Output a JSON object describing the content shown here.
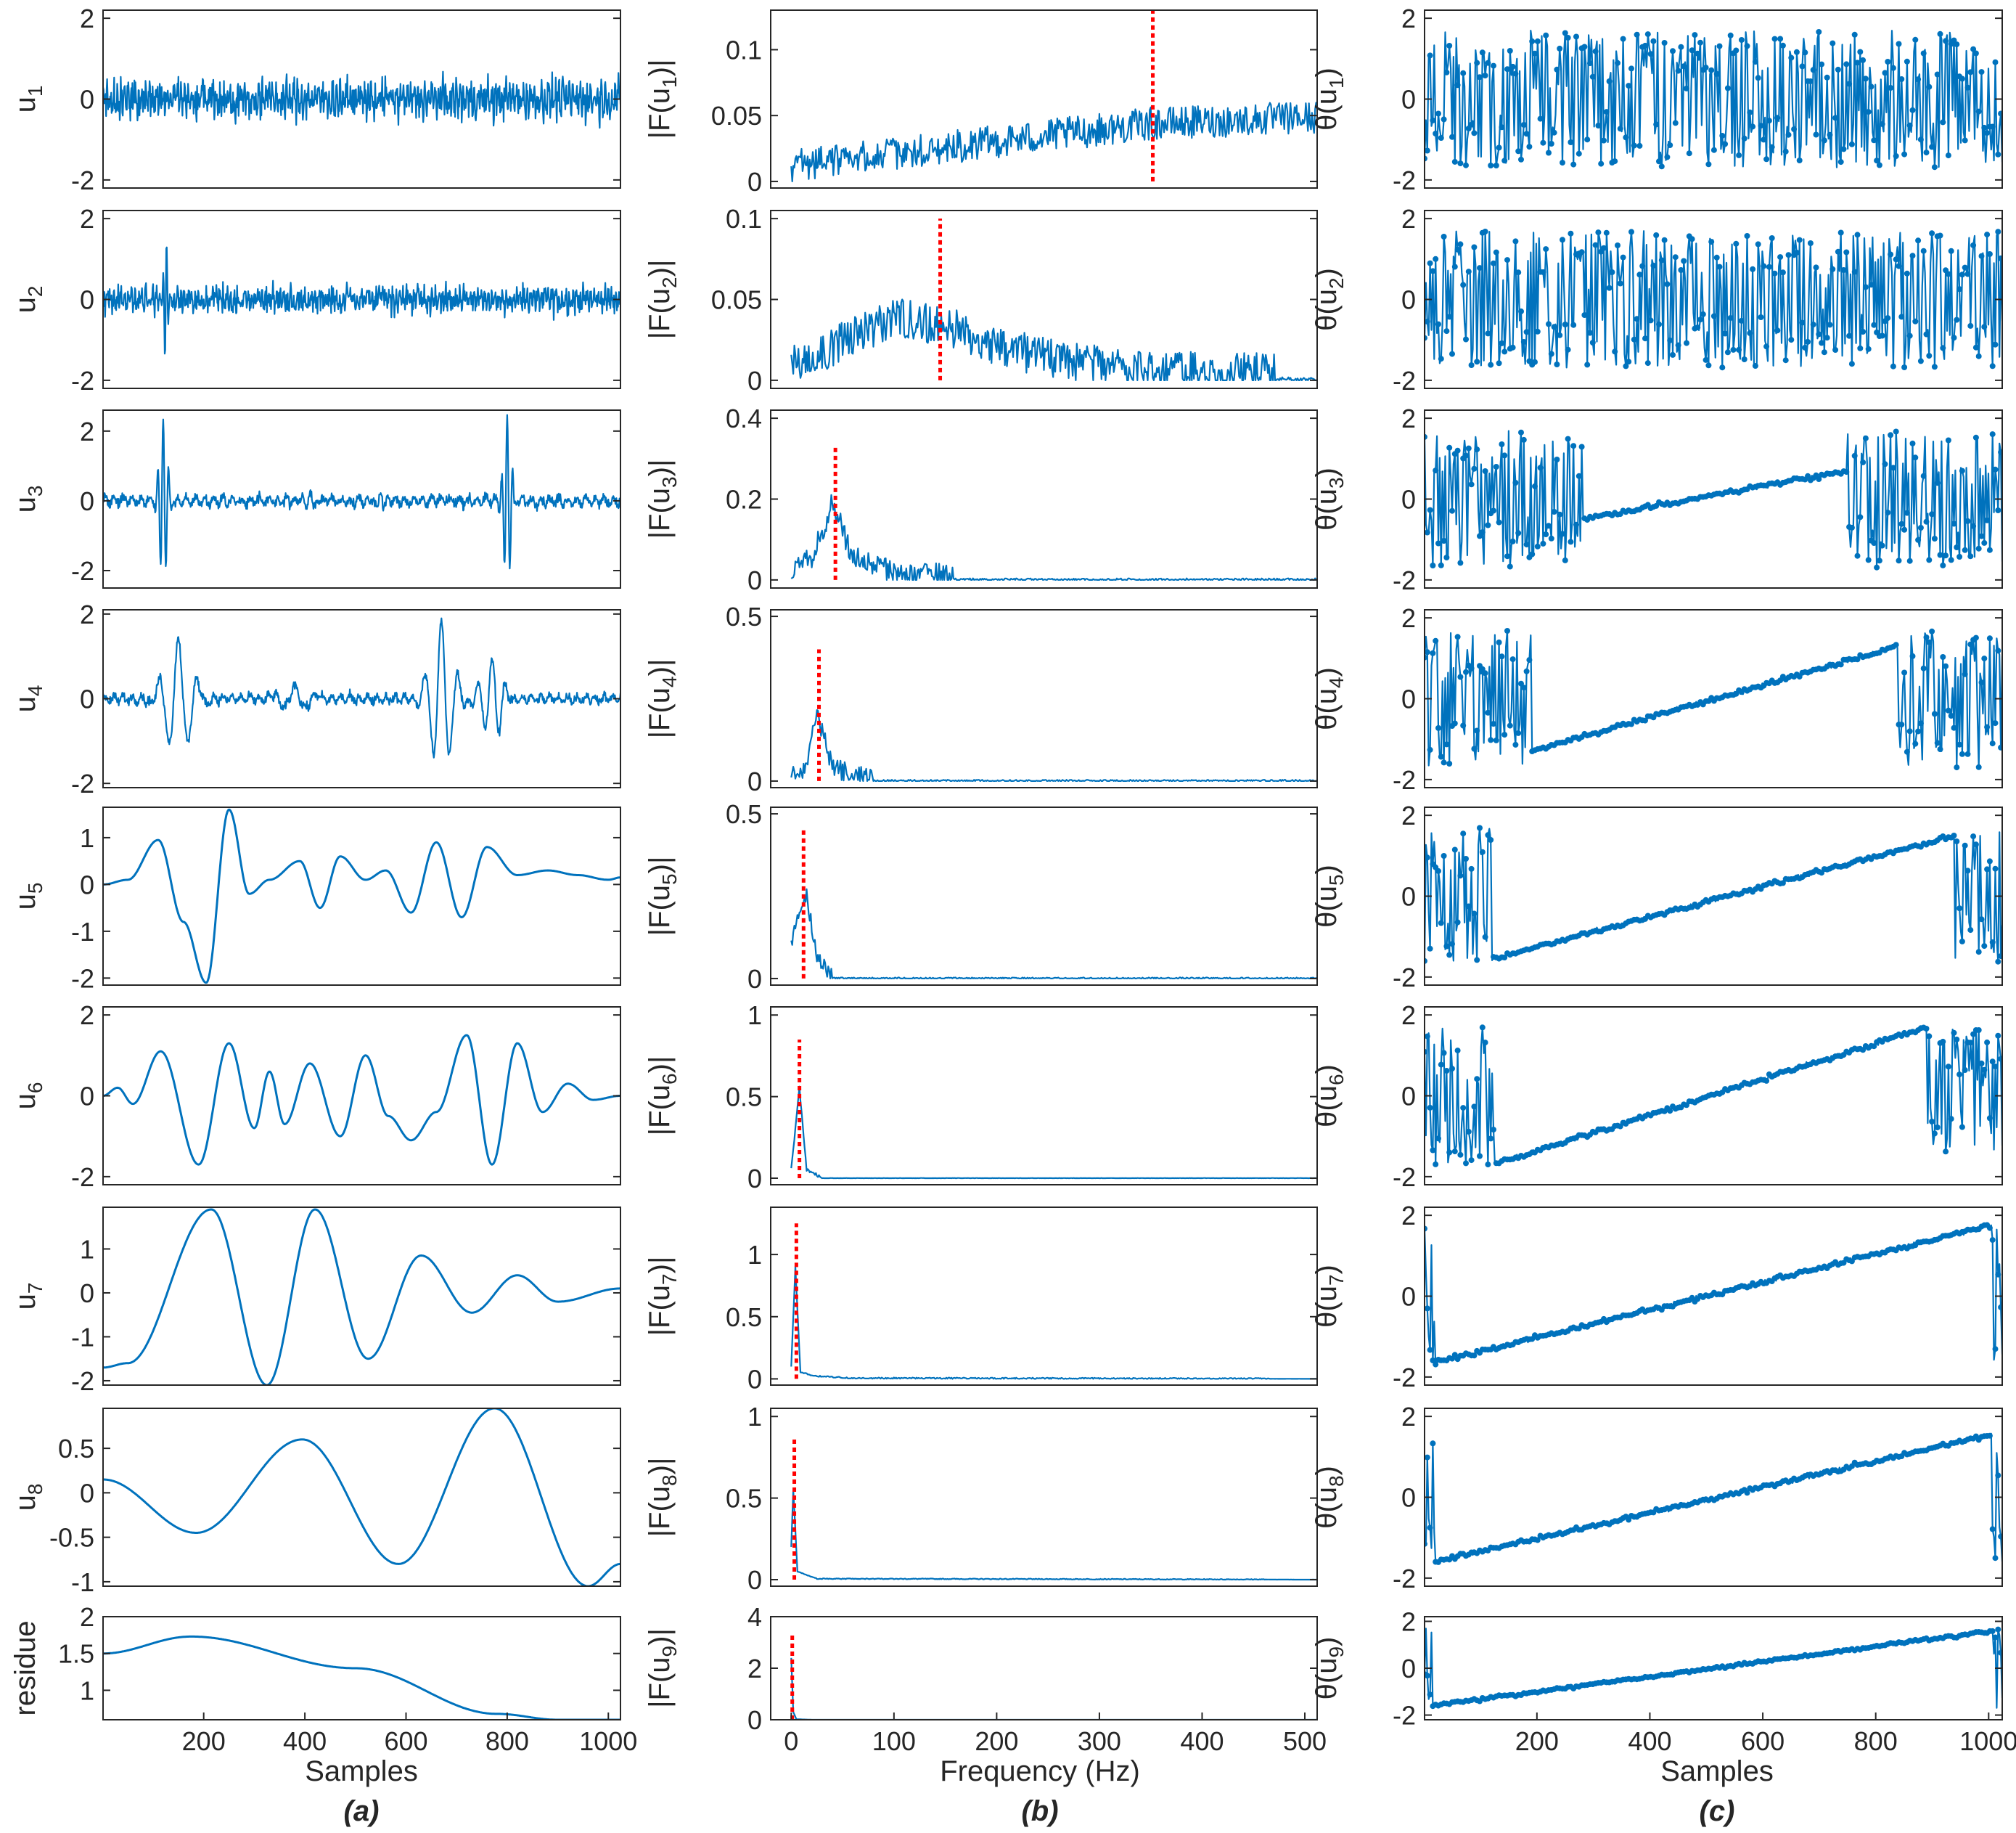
{
  "colors": {
    "signal": "#0072BD",
    "center_frequency": "#FF0000",
    "axes": "#262626"
  },
  "columns": {
    "a": {
      "panel_label": "(a)",
      "xlabel": "Samples"
    },
    "b": {
      "panel_label": "(b)",
      "xlabel": "Frequency (Hz)"
    },
    "c": {
      "panel_label": "(c)",
      "xlabel": "Samples"
    }
  },
  "chart_data": [
    {
      "type": "line",
      "column": "a",
      "row": 1,
      "ylabel": "u_1",
      "xlim": [
        1,
        1024
      ],
      "ylim": [
        -2.2,
        2.2
      ],
      "yticks": [
        -2,
        0,
        2
      ],
      "ytick_labels": [
        "-2",
        "0",
        "2"
      ],
      "pattern": "noise",
      "amplitude": 0.5
    },
    {
      "type": "line",
      "column": "a",
      "row": 2,
      "ylabel": "u_2",
      "xlim": [
        1,
        1024
      ],
      "ylim": [
        -2.2,
        2.2
      ],
      "yticks": [
        -2,
        0,
        2
      ],
      "ytick_labels": [
        "-2",
        "0",
        "2"
      ],
      "pattern": "noise",
      "amplitude": 0.35,
      "burst_at": 125,
      "burst_amplitude": 1.6
    },
    {
      "type": "line",
      "column": "a",
      "row": 3,
      "ylabel": "u_3",
      "xlim": [
        1,
        1024
      ],
      "ylim": [
        -2.5,
        2.6
      ],
      "yticks": [
        -2,
        0,
        2
      ],
      "ytick_labels": [
        "-2",
        "0",
        "2"
      ],
      "pattern": "bursts",
      "amplitude": 0.2,
      "bursts": [
        [
          120,
          2.5,
          10
        ],
        [
          800,
          2.5,
          10
        ],
        [
          410,
          0.35,
          15
        ],
        [
          550,
          0.3,
          15
        ]
      ]
    },
    {
      "type": "line",
      "column": "a",
      "row": 4,
      "ylabel": "u_4",
      "xlim": [
        1,
        1024
      ],
      "ylim": [
        -2.1,
        2.1
      ],
      "yticks": [
        -2,
        0,
        2
      ],
      "ytick_labels": [
        "-2",
        "0",
        "2"
      ],
      "pattern": "bursts",
      "amplitude": 0.15,
      "bursts": [
        [
          150,
          1.4,
          35
        ],
        [
          670,
          1.8,
          30
        ],
        [
          770,
          1.0,
          25
        ],
        [
          380,
          0.3,
          40
        ]
      ]
    },
    {
      "type": "line",
      "column": "a",
      "row": 5,
      "ylabel": "u_5",
      "xlim": [
        1,
        1024
      ],
      "ylim": [
        -2.15,
        1.65
      ],
      "yticks": [
        -2,
        -1,
        0,
        1
      ],
      "ytick_labels": [
        "-2",
        "-1",
        "0",
        "1"
      ],
      "pattern": "oscillation",
      "x": [
        1,
        50,
        110,
        160,
        205,
        250,
        290,
        330,
        390,
        430,
        470,
        520,
        560,
        610,
        660,
        710,
        760,
        820,
        880,
        940,
        1000,
        1024
      ],
      "y": [
        0,
        0.1,
        0.95,
        -0.8,
        -2.1,
        1.6,
        -0.2,
        0.1,
        0.5,
        -0.5,
        0.6,
        0.1,
        0.3,
        -0.6,
        0.9,
        -0.7,
        0.8,
        0.2,
        0.3,
        0.2,
        0.1,
        0.15
      ]
    },
    {
      "type": "line",
      "column": "a",
      "row": 6,
      "ylabel": "u_6",
      "xlim": [
        1,
        1024
      ],
      "ylim": [
        -2.2,
        2.2
      ],
      "yticks": [
        -2,
        0,
        2
      ],
      "ytick_labels": [
        "-2",
        "0",
        "2"
      ],
      "pattern": "oscillation",
      "x": [
        1,
        30,
        60,
        115,
        190,
        250,
        300,
        330,
        360,
        410,
        470,
        520,
        565,
        610,
        660,
        720,
        770,
        820,
        870,
        920,
        970,
        1024
      ],
      "y": [
        0,
        0.2,
        -0.2,
        1.1,
        -1.7,
        1.3,
        -0.8,
        0.6,
        -0.7,
        0.8,
        -1.0,
        1.0,
        -0.5,
        -1.1,
        -0.4,
        1.5,
        -1.7,
        1.3,
        -0.4,
        0.3,
        -0.1,
        0
      ]
    },
    {
      "type": "line",
      "column": "a",
      "row": 7,
      "ylabel": "u_7",
      "xlim": [
        1,
        1024
      ],
      "ylim": [
        -2.1,
        1.95
      ],
      "yticks": [
        -2,
        -1,
        0,
        1
      ],
      "ytick_labels": [
        "-2",
        "-1",
        "0",
        "1"
      ],
      "pattern": "oscillation",
      "x": [
        1,
        50,
        215,
        325,
        420,
        525,
        630,
        730,
        820,
        900,
        1024
      ],
      "y": [
        -1.7,
        -1.6,
        1.9,
        -2.1,
        1.9,
        -1.5,
        0.85,
        -0.45,
        0.4,
        -0.2,
        0.1
      ]
    },
    {
      "type": "line",
      "column": "a",
      "row": 8,
      "ylabel": "u_8",
      "xlim": [
        1,
        1024
      ],
      "ylim": [
        -1.05,
        0.95
      ],
      "yticks": [
        -1,
        -0.5,
        0,
        0.5
      ],
      "ytick_labels": [
        "-1",
        "-0.5",
        "0",
        "0.5"
      ],
      "pattern": "oscillation",
      "x": [
        1,
        185,
        395,
        585,
        775,
        960,
        1024
      ],
      "y": [
        0.15,
        -0.45,
        0.6,
        -0.8,
        0.95,
        -1.05,
        -0.8
      ]
    },
    {
      "type": "line",
      "column": "a",
      "row": 9,
      "ylabel": "residue",
      "xlim": [
        1,
        1024
      ],
      "ylim": [
        0.6,
        2.0
      ],
      "yticks": [
        1,
        1.5,
        2
      ],
      "ytick_labels": [
        "1",
        "1.5",
        "2"
      ],
      "xticks": [
        200,
        400,
        600,
        800,
        1000
      ],
      "xtick_labels": [
        "200",
        "400",
        "600",
        "800",
        "1000"
      ],
      "pattern": "oscillation",
      "x": [
        1,
        175,
        500,
        780,
        900,
        1024
      ],
      "y": [
        1.5,
        1.73,
        1.3,
        0.68,
        0.6,
        0.6
      ]
    },
    {
      "type": "line",
      "column": "b",
      "row": 1,
      "ylabel": "|F(u_1)|",
      "xlim": [
        -20,
        512
      ],
      "ylim": [
        -0.005,
        0.13
      ],
      "yticks": [
        0,
        0.05,
        0.1
      ],
      "ytick_labels": [
        "0",
        "0.05",
        "0.1"
      ],
      "center_frequency": 352,
      "red_line_top": 0.13,
      "envelope": [
        [
          0,
          0.008
        ],
        [
          150,
          0.022
        ],
        [
          350,
          0.04
        ],
        [
          512,
          0.045
        ]
      ],
      "noise": 0.025
    },
    {
      "type": "line",
      "column": "b",
      "row": 2,
      "ylabel": "|F(u_2)|",
      "xlim": [
        -20,
        512
      ],
      "ylim": [
        -0.005,
        0.105
      ],
      "yticks": [
        0,
        0.05,
        0.1
      ],
      "ytick_labels": [
        "0",
        "0.05",
        "0.1"
      ],
      "center_frequency": 145,
      "red_line_top": 0.1,
      "envelope": [
        [
          0,
          0.005
        ],
        [
          50,
          0.02
        ],
        [
          100,
          0.035
        ],
        [
          150,
          0.03
        ],
        [
          200,
          0.018
        ],
        [
          260,
          0.008
        ],
        [
          350,
          0.002
        ],
        [
          512,
          0.0
        ]
      ],
      "noise": 0.025
    },
    {
      "type": "line",
      "column": "b",
      "row": 3,
      "ylabel": "|F(u_3)|",
      "xlim": [
        -20,
        512
      ],
      "ylim": [
        -0.02,
        0.42
      ],
      "yticks": [
        0,
        0.2,
        0.4
      ],
      "ytick_labels": [
        "0",
        "0.2",
        "0.4"
      ],
      "center_frequency": 43,
      "red_line_top": 0.33,
      "envelope": [
        [
          0,
          0.02
        ],
        [
          20,
          0.05
        ],
        [
          40,
          0.18
        ],
        [
          60,
          0.05
        ],
        [
          100,
          0.01
        ],
        [
          160,
          0.0
        ],
        [
          512,
          0.0
        ]
      ],
      "noise": 0.06
    },
    {
      "type": "line",
      "column": "b",
      "row": 4,
      "ylabel": "|F(u_4)|",
      "xlim": [
        -20,
        512
      ],
      "ylim": [
        -0.02,
        0.52
      ],
      "yticks": [
        0,
        0.5
      ],
      "ytick_labels": [
        "0",
        "0.5"
      ],
      "center_frequency": 27,
      "red_line_top": 0.4,
      "envelope": [
        [
          0,
          0.01
        ],
        [
          15,
          0.03
        ],
        [
          25,
          0.2
        ],
        [
          40,
          0.03
        ],
        [
          80,
          0.0
        ],
        [
          512,
          0.0
        ]
      ],
      "noise": 0.06
    },
    {
      "type": "line",
      "column": "b",
      "row": 5,
      "ylabel": "|F(u_5)|",
      "xlim": [
        -20,
        512
      ],
      "ylim": [
        -0.02,
        0.52
      ],
      "yticks": [
        0,
        0.5
      ],
      "ytick_labels": [
        "0",
        "0.5"
      ],
      "center_frequency": 12,
      "red_line_top": 0.45,
      "envelope": [
        [
          0,
          0.1
        ],
        [
          8,
          0.2
        ],
        [
          15,
          0.25
        ],
        [
          25,
          0.05
        ],
        [
          40,
          0.0
        ],
        [
          512,
          0.0
        ]
      ],
      "noise": 0.05
    },
    {
      "type": "line",
      "column": "b",
      "row": 6,
      "ylabel": "|F(u_6)|",
      "xlim": [
        -20,
        512
      ],
      "ylim": [
        -0.04,
        1.05
      ],
      "yticks": [
        0,
        0.5,
        1
      ],
      "ytick_labels": [
        "0",
        "0.5",
        "1"
      ],
      "center_frequency": 8,
      "red_line_top": 0.85,
      "envelope": [
        [
          0,
          0.05
        ],
        [
          8,
          0.55
        ],
        [
          15,
          0.05
        ],
        [
          30,
          0.0
        ],
        [
          512,
          0.0
        ]
      ],
      "noise": 0.02
    },
    {
      "type": "line",
      "column": "b",
      "row": 7,
      "ylabel": "|F(u_7)|",
      "xlim": [
        -20,
        512
      ],
      "ylim": [
        -0.05,
        1.38
      ],
      "yticks": [
        0,
        0.5,
        1
      ],
      "ytick_labels": [
        "0",
        "0.5",
        "1"
      ],
      "center_frequency": 5,
      "red_line_top": 1.25,
      "envelope": [
        [
          0,
          0.1
        ],
        [
          4,
          0.9
        ],
        [
          9,
          0.05
        ],
        [
          25,
          0.02
        ],
        [
          60,
          0.005
        ],
        [
          512,
          0.0
        ]
      ],
      "noise": 0.01
    },
    {
      "type": "line",
      "column": "b",
      "row": 8,
      "ylabel": "|F(u_8)|",
      "xlim": [
        -20,
        512
      ],
      "ylim": [
        -0.04,
        1.05
      ],
      "yticks": [
        0,
        0.5,
        1
      ],
      "ytick_labels": [
        "0",
        "0.5",
        "1"
      ],
      "center_frequency": 3,
      "red_line_top": 0.88,
      "envelope": [
        [
          0,
          0.2
        ],
        [
          2,
          0.55
        ],
        [
          6,
          0.05
        ],
        [
          25,
          0.005
        ],
        [
          512,
          0.0
        ]
      ],
      "noise": 0.005
    },
    {
      "type": "line",
      "column": "b",
      "row": 9,
      "ylabel": "|F(u_9)|",
      "xlim": [
        -20,
        512
      ],
      "ylim": [
        0,
        4
      ],
      "yticks": [
        0,
        2,
        4
      ],
      "ytick_labels": [
        "0",
        "2",
        "4"
      ],
      "xticks": [
        0,
        100,
        200,
        300,
        400,
        500
      ],
      "xtick_labels": [
        "0",
        "100",
        "200",
        "300",
        "400",
        "500"
      ],
      "center_frequency": 1,
      "red_line_top": 3.3,
      "envelope": [
        [
          0,
          2.4
        ],
        [
          2,
          0.3
        ],
        [
          5,
          0.02
        ],
        [
          20,
          0.0
        ],
        [
          512,
          0.0
        ]
      ],
      "noise": 0.002
    },
    {
      "type": "line",
      "column": "c",
      "row": 1,
      "ylabel": "θ(u_1)",
      "xlim": [
        1,
        1024
      ],
      "ylim": [
        -2.2,
        2.2
      ],
      "yticks": [
        -2,
        0,
        2
      ],
      "ytick_labels": [
        "-2",
        "0",
        "2"
      ],
      "pattern": "phase",
      "linear": []
    },
    {
      "type": "line",
      "column": "c",
      "row": 2,
      "ylabel": "θ(u_2)",
      "xlim": [
        1,
        1024
      ],
      "ylim": [
        -2.2,
        2.2
      ],
      "yticks": [
        -2,
        0,
        2
      ],
      "ytick_labels": [
        "-2",
        "0",
        "2"
      ],
      "pattern": "phase",
      "linear": []
    },
    {
      "type": "line",
      "column": "c",
      "row": 3,
      "ylabel": "θ(u_3)",
      "xlim": [
        1,
        1024
      ],
      "ylim": [
        -2.2,
        2.2
      ],
      "yticks": [
        -2,
        0,
        2
      ],
      "ytick_labels": [
        "-2",
        "0",
        "2"
      ],
      "pattern": "phase",
      "linear": [
        [
          280,
          750,
          -0.5,
          0.7
        ]
      ]
    },
    {
      "type": "line",
      "column": "c",
      "row": 4,
      "ylabel": "θ(u_4)",
      "xlim": [
        1,
        1024
      ],
      "ylim": [
        -2.2,
        2.2
      ],
      "yticks": [
        -2,
        0,
        2
      ],
      "ytick_labels": [
        "-2",
        "0",
        "2"
      ],
      "pattern": "phase",
      "linear": [
        [
          190,
          840,
          -1.3,
          1.3
        ]
      ]
    },
    {
      "type": "line",
      "column": "c",
      "row": 5,
      "ylabel": "θ(u_5)",
      "xlim": [
        1,
        1024
      ],
      "ylim": [
        -2.2,
        2.2
      ],
      "yticks": [
        -2,
        0,
        2
      ],
      "ytick_labels": [
        "-2",
        "0",
        "2"
      ],
      "pattern": "phase",
      "linear": [
        [
          120,
          940,
          -1.55,
          1.5
        ]
      ]
    },
    {
      "type": "line",
      "column": "c",
      "row": 6,
      "ylabel": "θ(u_6)",
      "xlim": [
        1,
        1024
      ],
      "ylim": [
        -2.2,
        2.2
      ],
      "yticks": [
        -2,
        0,
        2
      ],
      "ytick_labels": [
        "-2",
        "0",
        "2"
      ],
      "pattern": "phase",
      "linear": [
        [
          125,
          890,
          -1.7,
          1.7
        ]
      ]
    },
    {
      "type": "line",
      "column": "c",
      "row": 7,
      "ylabel": "θ(u_7)",
      "xlim": [
        1,
        1024
      ],
      "ylim": [
        -2.2,
        2.2
      ],
      "yticks": [
        -2,
        0,
        2
      ],
      "ytick_labels": [
        "-2",
        "0",
        "2"
      ],
      "pattern": "phase",
      "linear": [
        [
          20,
          1005,
          -1.65,
          1.75
        ]
      ]
    },
    {
      "type": "line",
      "column": "c",
      "row": 8,
      "ylabel": "θ(u_8)",
      "xlim": [
        1,
        1024
      ],
      "ylim": [
        -2.2,
        2.2
      ],
      "yticks": [
        -2,
        0,
        2
      ],
      "ytick_labels": [
        "-2",
        "0",
        "2"
      ],
      "pattern": "phase",
      "linear": [
        [
          20,
          1005,
          -1.6,
          1.55
        ]
      ]
    },
    {
      "type": "line",
      "column": "c",
      "row": 9,
      "ylabel": "θ(u_9)",
      "xlim": [
        1,
        1024
      ],
      "ylim": [
        -2.2,
        2.2
      ],
      "yticks": [
        -2,
        0,
        2
      ],
      "ytick_labels": [
        "-2",
        "0",
        "2"
      ],
      "xticks": [
        200,
        400,
        600,
        800,
        1000
      ],
      "xtick_labels": [
        "200",
        "400",
        "600",
        "800",
        "1000"
      ],
      "pattern": "phase",
      "linear": [
        [
          15,
          1008,
          -1.6,
          1.6
        ]
      ]
    }
  ]
}
